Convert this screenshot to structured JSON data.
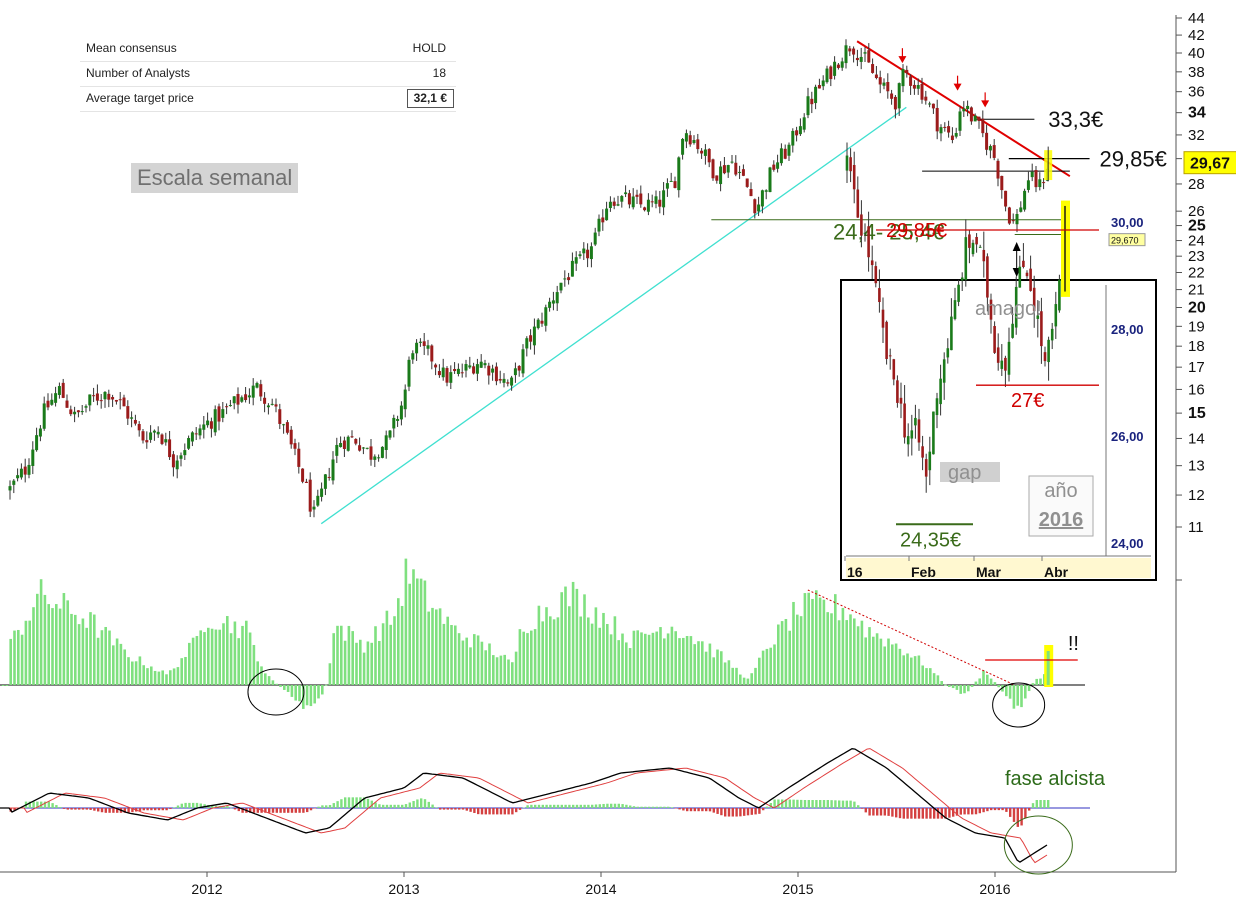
{
  "consensus": {
    "rows": [
      {
        "label": "Mean consensus",
        "value": "HOLD"
      },
      {
        "label": "Number of Analysts",
        "value": "18"
      },
      {
        "label": "Average target price",
        "value": "32,1 €"
      }
    ]
  },
  "escala_label": "Escala semanal",
  "colors": {
    "up": "#1a7a1a",
    "down": "#9b1b1b",
    "trend_up": "#40e0d0",
    "trend_down": "#e00000",
    "support": "#3a6b1a",
    "histogram": "#7fe07f",
    "hist_neg": "#d44040",
    "highlight": "#ffff00"
  },
  "chart_data": [
    {
      "type": "candlestick",
      "title": "",
      "scale": "log",
      "y_ticks": [
        11,
        12,
        13,
        14,
        15,
        16,
        17,
        18,
        19,
        20,
        21,
        22,
        23,
        24,
        25,
        26,
        28,
        30,
        32,
        34,
        36,
        38,
        40,
        42,
        44
      ],
      "y_ticks_bold": [
        15,
        20,
        25,
        34
      ],
      "x_ticks": [
        "2012",
        "2013",
        "2014",
        "2015",
        "2016"
      ],
      "last_price": "29,67",
      "weekly_close_path": [
        {
          "date": "2011.00",
          "close": 12.2
        },
        {
          "date": "2011.08",
          "close": 12.9
        },
        {
          "date": "2011.17",
          "close": 15.0
        },
        {
          "date": "2011.25",
          "close": 16.0
        },
        {
          "date": "2011.33",
          "close": 14.8
        },
        {
          "date": "2011.42",
          "close": 15.6
        },
        {
          "date": "2011.50",
          "close": 15.9
        },
        {
          "date": "2011.58",
          "close": 15.2
        },
        {
          "date": "2011.67",
          "close": 14.0
        },
        {
          "date": "2011.75",
          "close": 14.4
        },
        {
          "date": "2011.83",
          "close": 13.2
        },
        {
          "date": "2011.92",
          "close": 14.0
        },
        {
          "date": "2012.00",
          "close": 14.6
        },
        {
          "date": "2012.08",
          "close": 15.0
        },
        {
          "date": "2012.17",
          "close": 15.6
        },
        {
          "date": "2012.25",
          "close": 16.1
        },
        {
          "date": "2012.33",
          "close": 15.4
        },
        {
          "date": "2012.42",
          "close": 13.8
        },
        {
          "date": "2012.50",
          "close": 12.3
        },
        {
          "date": "2012.54",
          "close": 11.3
        },
        {
          "date": "2012.58",
          "close": 12.0
        },
        {
          "date": "2012.67",
          "close": 13.9
        },
        {
          "date": "2012.75",
          "close": 14.0
        },
        {
          "date": "2012.83",
          "close": 13.4
        },
        {
          "date": "2012.92",
          "close": 13.9
        },
        {
          "date": "2013.00",
          "close": 15.6
        },
        {
          "date": "2013.04",
          "close": 18.0
        },
        {
          "date": "2013.13",
          "close": 17.6
        },
        {
          "date": "2013.21",
          "close": 16.5
        },
        {
          "date": "2013.30",
          "close": 16.8
        },
        {
          "date": "2013.38",
          "close": 17.3
        },
        {
          "date": "2013.46",
          "close": 16.8
        },
        {
          "date": "2013.54",
          "close": 16.1
        },
        {
          "date": "2013.63",
          "close": 18.2
        },
        {
          "date": "2013.71",
          "close": 19.6
        },
        {
          "date": "2013.79",
          "close": 21.3
        },
        {
          "date": "2013.88",
          "close": 22.5
        },
        {
          "date": "2013.96",
          "close": 23.6
        },
        {
          "date": "2014.04",
          "close": 27.0
        },
        {
          "date": "2014.12",
          "close": 26.8
        },
        {
          "date": "2014.21",
          "close": 26.4
        },
        {
          "date": "2014.29",
          "close": 26.5
        },
        {
          "date": "2014.38",
          "close": 28.5
        },
        {
          "date": "2014.42",
          "close": 32.6
        },
        {
          "date": "2014.50",
          "close": 31.0
        },
        {
          "date": "2014.58",
          "close": 28.8
        },
        {
          "date": "2014.67",
          "close": 29.8
        },
        {
          "date": "2014.75",
          "close": 27.5
        },
        {
          "date": "2014.79",
          "close": 26.2
        },
        {
          "date": "2014.88",
          "close": 29.5
        },
        {
          "date": "2014.96",
          "close": 31.0
        },
        {
          "date": "2015.04",
          "close": 34.5
        },
        {
          "date": "2015.13",
          "close": 37.0
        },
        {
          "date": "2015.21",
          "close": 39.5
        },
        {
          "date": "2015.27",
          "close": 41.0
        },
        {
          "date": "2015.33",
          "close": 39.5
        },
        {
          "date": "2015.42",
          "close": 36.5
        },
        {
          "date": "2015.50",
          "close": 35.0
        },
        {
          "date": "2015.54",
          "close": 38.0
        },
        {
          "date": "2015.63",
          "close": 36.0
        },
        {
          "date": "2015.71",
          "close": 33.0
        },
        {
          "date": "2015.79",
          "close": 31.5
        },
        {
          "date": "2015.83",
          "close": 35.0
        },
        {
          "date": "2015.92",
          "close": 32.5
        },
        {
          "date": "2016.00",
          "close": 30.0
        },
        {
          "date": "2016.06",
          "close": 26.0
        },
        {
          "date": "2016.10",
          "close": 25.0
        },
        {
          "date": "2016.17",
          "close": 28.5
        },
        {
          "date": "2016.23",
          "close": 27.8
        },
        {
          "date": "2016.27",
          "close": 29.67
        }
      ],
      "annotations": [
        {
          "text": "33,3€"
        },
        {
          "text": "29,85€"
        },
        {
          "text": "24,4- 25,4€"
        }
      ]
    },
    {
      "type": "candlestick",
      "title": "inset",
      "y_ticks": [
        "30,00",
        "28,00",
        "26,00",
        "24,00"
      ],
      "x_ticks": [
        "16",
        "Feb",
        "Mar",
        "Abr"
      ],
      "last_price": "29,670",
      "daily_close_path": [
        {
          "date": "2016-01-04",
          "close": 31.1
        },
        {
          "date": "2016-01-08",
          "close": 30.2
        },
        {
          "date": "2016-01-12",
          "close": 29.6
        },
        {
          "date": "2016-01-15",
          "close": 28.6
        },
        {
          "date": "2016-01-20",
          "close": 27.5
        },
        {
          "date": "2016-01-25",
          "close": 26.9
        },
        {
          "date": "2016-02-01",
          "close": 26.0
        },
        {
          "date": "2016-02-04",
          "close": 26.1
        },
        {
          "date": "2016-02-11",
          "close": 25.2
        },
        {
          "date": "2016-02-16",
          "close": 26.8
        },
        {
          "date": "2016-02-22",
          "close": 27.6
        },
        {
          "date": "2016-02-25",
          "close": 28.5
        },
        {
          "date": "2016-03-01",
          "close": 29.5
        },
        {
          "date": "2016-03-04",
          "close": 29.7
        },
        {
          "date": "2016-03-09",
          "close": 28.9
        },
        {
          "date": "2016-03-14",
          "close": 27.6
        },
        {
          "date": "2016-03-18",
          "close": 27.4
        },
        {
          "date": "2016-03-23",
          "close": 28.7
        },
        {
          "date": "2016-03-29",
          "close": 29.3
        },
        {
          "date": "2016-04-01",
          "close": 28.4
        },
        {
          "date": "2016-04-05",
          "close": 27.3
        },
        {
          "date": "2016-04-08",
          "close": 28.2
        },
        {
          "date": "2016-04-12",
          "close": 29.67
        }
      ],
      "annotations": [
        {
          "text": "29,85€"
        },
        {
          "text": "27€"
        },
        {
          "text": "24,35€"
        },
        {
          "text": "amago!"
        },
        {
          "text": "gap"
        },
        {
          "text": "año"
        },
        {
          "text": "2016"
        }
      ]
    },
    {
      "type": "bar",
      "title": "",
      "annotation": "!!"
    },
    {
      "type": "line",
      "title": "",
      "annotation": "fase alcista"
    }
  ]
}
